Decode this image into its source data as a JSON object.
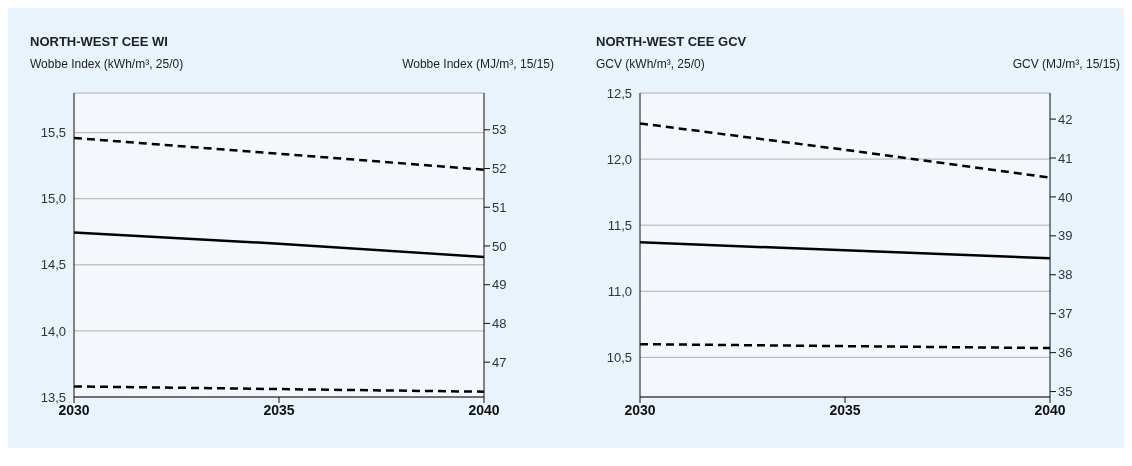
{
  "chart_data": [
    {
      "type": "line",
      "title": "NORTH-WEST CEE WI",
      "ylabel": "Wobbe Index (kWh/m³, 25/0)",
      "y2label": "Wobbe Index (MJ/m³, 15/15)",
      "x": [
        2030,
        2035,
        2040
      ],
      "xlim": [
        2030,
        2040
      ],
      "xticks": [
        2030,
        2035,
        2040
      ],
      "ylim": [
        13.5,
        15.8
      ],
      "yticks": [
        {
          "value": 13.5,
          "label": "13,5"
        },
        {
          "value": 14.0,
          "label": "14,0"
        },
        {
          "value": 14.5,
          "label": "14,5"
        },
        {
          "value": 15.0,
          "label": "15,0"
        },
        {
          "value": 15.5,
          "label": "15,5"
        }
      ],
      "y2lim": [
        46.1,
        53.95
      ],
      "y2ticks": [
        47,
        48,
        49,
        50,
        51,
        52,
        53
      ],
      "grid": "y",
      "legend": false,
      "marker": "none",
      "series": [
        {
          "color": "#000000",
          "line_style": "dashed",
          "values": [
            15.46,
            15.34,
            15.22
          ]
        },
        {
          "color": "#000000",
          "line_style": "solid",
          "values": [
            14.745,
            14.66,
            14.56
          ]
        },
        {
          "color": "#000000",
          "line_style": "dashed",
          "values": [
            13.58,
            13.56,
            13.54
          ]
        }
      ]
    },
    {
      "type": "line",
      "title": "NORTH-WEST CEE GCV",
      "ylabel": "GCV (kWh/m³, 25/0)",
      "y2label": "GCV (MJ/m³, 15/15)",
      "x": [
        2030,
        2035,
        2040
      ],
      "xlim": [
        2030,
        2040
      ],
      "xticks": [
        2030,
        2035,
        2040
      ],
      "ylim": [
        10.2,
        12.5
      ],
      "yticks": [
        {
          "value": 10.5,
          "label": "10,5"
        },
        {
          "value": 11.0,
          "label": "11,0"
        },
        {
          "value": 11.5,
          "label": "11,5"
        },
        {
          "value": 12.0,
          "label": "12,0"
        },
        {
          "value": 12.5,
          "label": "12,5"
        }
      ],
      "y2lim": [
        34.86,
        42.67
      ],
      "y2ticks": [
        35,
        36,
        37,
        38,
        39,
        40,
        41,
        42
      ],
      "grid": "y",
      "legend": false,
      "marker": "none",
      "series": [
        {
          "color": "#000000",
          "line_style": "dashed",
          "values": [
            12.27,
            12.07,
            11.86
          ]
        },
        {
          "color": "#000000",
          "line_style": "solid",
          "values": [
            11.37,
            11.31,
            11.25
          ]
        },
        {
          "color": "#000000",
          "line_style": "dashed",
          "values": [
            10.6,
            10.585,
            10.57
          ]
        }
      ]
    }
  ]
}
